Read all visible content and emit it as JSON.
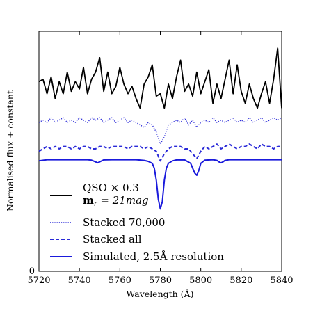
{
  "chart_data": {
    "type": "line",
    "xlabel": "Wavelength (Å)",
    "ylabel": "Normalised flux + constant",
    "xlim": [
      5720,
      5840
    ],
    "ylim": [
      0,
      1
    ],
    "x_ticks": [
      5720,
      5740,
      5760,
      5780,
      5800,
      5820,
      5840
    ],
    "x_tick_labels": [
      "5720",
      "5740",
      "5760",
      "5780",
      "5800",
      "5820",
      "5840"
    ],
    "y_ticks": [
      0
    ],
    "y_tick_labels": [
      "0"
    ],
    "grid": false,
    "legend_position": "bottom-left",
    "series": [
      {
        "name": "QSO × 0.3 m_r = 21mag",
        "legend_line1": "QSO × 0.3",
        "legend_line2": "m",
        "legend_sub": "r",
        "legend_tail": " = 21mag",
        "color": "#000000",
        "style": "solid",
        "x": [
          5720,
          5722,
          5724,
          5726,
          5728,
          5730,
          5732,
          5734,
          5736,
          5738,
          5740,
          5742,
          5744,
          5746,
          5748,
          5750,
          5752,
          5754,
          5756,
          5758,
          5760,
          5762,
          5764,
          5766,
          5768,
          5770,
          5772,
          5774,
          5776,
          5778,
          5780,
          5782,
          5784,
          5786,
          5788,
          5790,
          5792,
          5794,
          5796,
          5798,
          5800,
          5802,
          5804,
          5806,
          5808,
          5810,
          5812,
          5814,
          5816,
          5818,
          5820,
          5822,
          5824,
          5826,
          5828,
          5830,
          5832,
          5834,
          5836,
          5838,
          5840
        ],
        "y": [
          0.79,
          0.8,
          0.74,
          0.81,
          0.72,
          0.79,
          0.74,
          0.83,
          0.75,
          0.79,
          0.76,
          0.85,
          0.74,
          0.8,
          0.83,
          0.89,
          0.75,
          0.83,
          0.74,
          0.77,
          0.85,
          0.78,
          0.74,
          0.77,
          0.72,
          0.68,
          0.78,
          0.81,
          0.86,
          0.73,
          0.74,
          0.68,
          0.78,
          0.72,
          0.81,
          0.88,
          0.75,
          0.78,
          0.73,
          0.83,
          0.74,
          0.79,
          0.84,
          0.7,
          0.78,
          0.72,
          0.8,
          0.88,
          0.74,
          0.86,
          0.75,
          0.7,
          0.78,
          0.72,
          0.68,
          0.74,
          0.79,
          0.7,
          0.8,
          0.93,
          0.68
        ]
      },
      {
        "name": "Stacked 70,000",
        "color": "#2a2ad8",
        "style": "dotted",
        "x": [
          5720,
          5722,
          5724,
          5726,
          5728,
          5730,
          5732,
          5734,
          5736,
          5738,
          5740,
          5742,
          5744,
          5746,
          5748,
          5750,
          5752,
          5754,
          5756,
          5758,
          5760,
          5762,
          5764,
          5766,
          5768,
          5770,
          5772,
          5774,
          5776,
          5778,
          5780,
          5782,
          5784,
          5786,
          5788,
          5790,
          5792,
          5794,
          5796,
          5798,
          5800,
          5802,
          5804,
          5806,
          5808,
          5810,
          5812,
          5814,
          5816,
          5818,
          5820,
          5822,
          5824,
          5826,
          5828,
          5830,
          5832,
          5834,
          5836,
          5838,
          5840
        ],
        "y": [
          0.62,
          0.63,
          0.62,
          0.64,
          0.62,
          0.63,
          0.64,
          0.62,
          0.63,
          0.62,
          0.64,
          0.63,
          0.62,
          0.64,
          0.63,
          0.64,
          0.62,
          0.63,
          0.64,
          0.62,
          0.63,
          0.64,
          0.62,
          0.63,
          0.62,
          0.61,
          0.6,
          0.62,
          0.61,
          0.58,
          0.53,
          0.56,
          0.61,
          0.62,
          0.63,
          0.62,
          0.64,
          0.61,
          0.63,
          0.6,
          0.62,
          0.63,
          0.62,
          0.64,
          0.62,
          0.63,
          0.62,
          0.63,
          0.64,
          0.62,
          0.63,
          0.62,
          0.64,
          0.62,
          0.63,
          0.64,
          0.62,
          0.63,
          0.64,
          0.63,
          0.64
        ]
      },
      {
        "name": "Stacked all",
        "color": "#2a2ad8",
        "style": "dashed",
        "x": [
          5720,
          5722,
          5724,
          5726,
          5728,
          5730,
          5732,
          5734,
          5736,
          5738,
          5740,
          5742,
          5744,
          5746,
          5748,
          5750,
          5752,
          5754,
          5756,
          5758,
          5760,
          5762,
          5764,
          5766,
          5768,
          5770,
          5772,
          5774,
          5776,
          5778,
          5780,
          5782,
          5784,
          5786,
          5788,
          5790,
          5792,
          5794,
          5796,
          5798,
          5800,
          5802,
          5804,
          5806,
          5808,
          5810,
          5812,
          5814,
          5816,
          5818,
          5820,
          5822,
          5824,
          5826,
          5828,
          5830,
          5832,
          5834,
          5836,
          5838,
          5840
        ],
        "y": [
          0.5,
          0.51,
          0.52,
          0.51,
          0.52,
          0.51,
          0.52,
          0.52,
          0.51,
          0.52,
          0.51,
          0.52,
          0.52,
          0.51,
          0.51,
          0.52,
          0.52,
          0.51,
          0.52,
          0.52,
          0.52,
          0.52,
          0.51,
          0.52,
          0.52,
          0.52,
          0.51,
          0.52,
          0.51,
          0.5,
          0.46,
          0.49,
          0.51,
          0.52,
          0.52,
          0.52,
          0.51,
          0.51,
          0.49,
          0.47,
          0.5,
          0.52,
          0.51,
          0.52,
          0.53,
          0.51,
          0.52,
          0.53,
          0.52,
          0.51,
          0.52,
          0.52,
          0.53,
          0.52,
          0.51,
          0.53,
          0.52,
          0.52,
          0.51,
          0.52,
          0.52
        ]
      },
      {
        "name": "Simulated, 2.5Å resolution",
        "color": "#1a1adc",
        "style": "solid",
        "x": [
          5720,
          5724,
          5728,
          5732,
          5736,
          5740,
          5744,
          5746,
          5748,
          5749,
          5750,
          5752,
          5756,
          5760,
          5764,
          5768,
          5772,
          5774,
          5776,
          5777,
          5778,
          5779,
          5780,
          5781,
          5782,
          5783,
          5784,
          5786,
          5788,
          5792,
          5795,
          5796,
          5797,
          5798,
          5799,
          5800,
          5802,
          5806,
          5808,
          5809,
          5810,
          5811,
          5812,
          5814,
          5820,
          5826,
          5830,
          5834,
          5838,
          5840
        ],
        "y": [
          0.46,
          0.465,
          0.465,
          0.465,
          0.465,
          0.465,
          0.465,
          0.463,
          0.456,
          0.452,
          0.456,
          0.464,
          0.465,
          0.465,
          0.465,
          0.465,
          0.462,
          0.458,
          0.45,
          0.43,
          0.38,
          0.3,
          0.26,
          0.29,
          0.38,
          0.43,
          0.45,
          0.46,
          0.464,
          0.464,
          0.45,
          0.43,
          0.41,
          0.4,
          0.42,
          0.45,
          0.463,
          0.465,
          0.462,
          0.456,
          0.452,
          0.456,
          0.462,
          0.465,
          0.465,
          0.465,
          0.465,
          0.465,
          0.465,
          0.465
        ]
      }
    ]
  }
}
